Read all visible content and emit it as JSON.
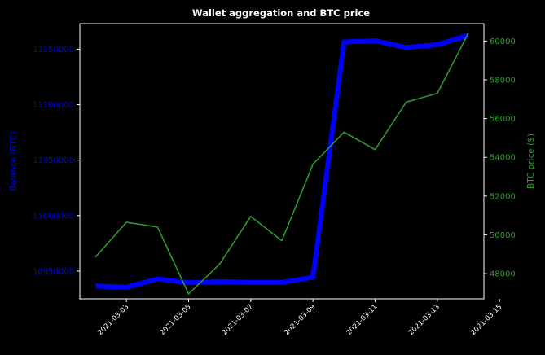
{
  "chart_data": {
    "type": "line",
    "title": "Wallet aggregation and BTC price",
    "x": [
      "2021-03-02",
      "2021-03-03",
      "2021-03-04",
      "2021-03-05",
      "2021-03-06",
      "2021-03-07",
      "2021-03-08",
      "2021-03-09",
      "2021-03-10",
      "2021-03-11",
      "2021-03-12",
      "2021-03-13",
      "2021-03-14"
    ],
    "xlim": [
      "2021-03-01T12:00",
      "2021-03-14T12:00"
    ],
    "x_ticks": [
      "2021-03-03",
      "2021-03-05",
      "2021-03-07",
      "2021-03-09",
      "2021-03-11",
      "2021-03-13",
      "2021-03-15"
    ],
    "left_axis": {
      "label": "Balance (BTC)",
      "color": "#0000ff",
      "ylim": [
        10925000,
        11173000
      ],
      "ticks": [
        "10950000",
        "11000000",
        "11050000",
        "11100000",
        "11150000"
      ]
    },
    "right_axis": {
      "label": "BTC price ($)",
      "color": "#2ca02c",
      "ylim": [
        46700,
        60900
      ],
      "ticks": [
        "48000",
        "50000",
        "52000",
        "54000",
        "56000",
        "58000",
        "60000"
      ]
    },
    "series": [
      {
        "axis": "left",
        "color": "#0000ff",
        "line_width": 6,
        "values": [
          10936500,
          10935500,
          10943000,
          10939500,
          10940500,
          10939800,
          10939800,
          10944500,
          11156500,
          11157500,
          11151500,
          11154000,
          11162500
        ]
      },
      {
        "axis": "right",
        "color": "#2ca02c",
        "line_width": 1.5,
        "values": [
          48850,
          50650,
          50400,
          46950,
          48500,
          50950,
          49700,
          53650,
          55300,
          54400,
          56850,
          57300,
          60400
        ]
      }
    ],
    "grid": false,
    "legend": "none"
  }
}
